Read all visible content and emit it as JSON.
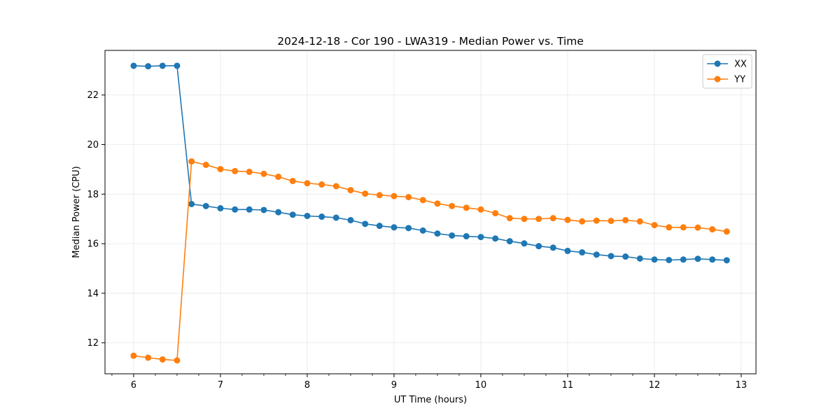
{
  "chart_data": {
    "type": "line",
    "title": "2024-12-18 - Cor 190 - LWA319 - Median Power vs. Time",
    "xlabel": "UT Time (hours)",
    "ylabel": "Median Power (CPU)",
    "xlim": [
      5.67,
      13.17
    ],
    "ylim": [
      10.75,
      23.8
    ],
    "xticks": [
      6,
      7,
      8,
      9,
      10,
      11,
      12,
      13
    ],
    "xtick_labels": [
      "6",
      "7",
      "8",
      "9",
      "10",
      "11",
      "12",
      "13"
    ],
    "yticks": [
      12,
      14,
      16,
      18,
      20,
      22
    ],
    "ytick_labels": [
      "12",
      "14",
      "16",
      "18",
      "20",
      "22"
    ],
    "grid": true,
    "legend_position": "top-right",
    "x": [
      6.0,
      6.167,
      6.333,
      6.5,
      6.667,
      6.833,
      7.0,
      7.167,
      7.333,
      7.5,
      7.667,
      7.833,
      8.0,
      8.167,
      8.333,
      8.5,
      8.667,
      8.833,
      9.0,
      9.167,
      9.333,
      9.5,
      9.667,
      9.833,
      10.0,
      10.167,
      10.333,
      10.5,
      10.667,
      10.833,
      11.0,
      11.167,
      11.333,
      11.5,
      11.667,
      11.833,
      12.0,
      12.167,
      12.333,
      12.5,
      12.667,
      12.833
    ],
    "series": [
      {
        "name": "XX",
        "color": "#1f77b4",
        "values": [
          23.18,
          23.16,
          23.18,
          23.18,
          17.6,
          17.52,
          17.43,
          17.38,
          17.38,
          17.36,
          17.27,
          17.17,
          17.12,
          17.09,
          17.05,
          16.95,
          16.8,
          16.72,
          16.66,
          16.63,
          16.53,
          16.41,
          16.33,
          16.3,
          16.27,
          16.21,
          16.1,
          16.01,
          15.9,
          15.84,
          15.71,
          15.65,
          15.56,
          15.5,
          15.48,
          15.4,
          15.36,
          15.34,
          15.36,
          15.39,
          15.36,
          15.33
        ]
      },
      {
        "name": "YY",
        "color": "#ff7f0e",
        "values": [
          11.48,
          11.4,
          11.33,
          11.29,
          19.32,
          19.18,
          19.01,
          18.93,
          18.9,
          18.82,
          18.7,
          18.53,
          18.44,
          18.39,
          18.32,
          18.16,
          18.02,
          17.96,
          17.92,
          17.88,
          17.76,
          17.62,
          17.52,
          17.45,
          17.38,
          17.23,
          17.03,
          17.0,
          17.0,
          17.03,
          16.96,
          16.9,
          16.93,
          16.92,
          16.95,
          16.9,
          16.75,
          16.66,
          16.66,
          16.65,
          16.58,
          16.49
        ]
      }
    ]
  }
}
